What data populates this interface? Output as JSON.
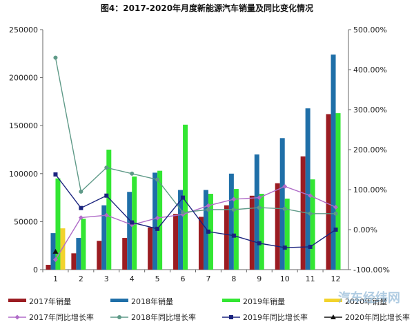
{
  "chart_data": {
    "type": "bar",
    "title": "图4：2017-2020年月度新能源汽车销量及同比变化情况",
    "categories": [
      "1",
      "2",
      "3",
      "4",
      "5",
      "6",
      "7",
      "8",
      "9",
      "10",
      "11",
      "12"
    ],
    "ylim": [
      0,
      250000
    ],
    "y_ticks": [
      "0",
      "50000",
      "100000",
      "150000",
      "200000",
      "250000"
    ],
    "y2lim": [
      -1.0,
      5.0
    ],
    "y2_ticks": [
      "-100.00%",
      "0.00%",
      "100.00%",
      "200.00%",
      "300.00%",
      "400.00%",
      "500.00%"
    ],
    "series": [
      {
        "name": "2017年销量",
        "kind": "bar",
        "color": "#9b1c22",
        "values": [
          5000,
          17000,
          30000,
          33000,
          44000,
          58000,
          55000,
          67000,
          77000,
          90000,
          118000,
          162000
        ]
      },
      {
        "name": "2018年销量",
        "kind": "bar",
        "color": "#1f6fa8",
        "values": [
          38000,
          33000,
          67000,
          81000,
          101000,
          83000,
          83000,
          100000,
          120000,
          137000,
          168000,
          224000
        ]
      },
      {
        "name": "2019年销量",
        "kind": "bar",
        "color": "#33e633",
        "values": [
          95000,
          53000,
          125000,
          97000,
          103000,
          151000,
          79000,
          84000,
          79000,
          74000,
          94000,
          163000
        ]
      },
      {
        "name": "2020年销量",
        "kind": "bar",
        "color": "#f2d32c",
        "values": [
          43000,
          null,
          null,
          null,
          null,
          null,
          null,
          null,
          null,
          null,
          null,
          null
        ]
      },
      {
        "name": "2017年同比增长率",
        "kind": "line",
        "color": "#b06cc8",
        "marker": "diamond",
        "values": [
          -0.75,
          0.3,
          0.36,
          0.12,
          0.29,
          0.38,
          0.6,
          0.76,
          0.8,
          1.08,
          0.85,
          0.56
        ]
      },
      {
        "name": "2018年同比增长率",
        "kind": "line",
        "color": "#5f9a88",
        "marker": "circle",
        "values": [
          4.3,
          0.95,
          1.55,
          1.4,
          1.25,
          0.43,
          0.5,
          0.5,
          0.55,
          0.52,
          0.4,
          0.4
        ]
      },
      {
        "name": "2019年同比增长率",
        "kind": "line",
        "color": "#1a237e",
        "marker": "square",
        "values": [
          1.38,
          0.54,
          0.85,
          0.18,
          0.02,
          0.8,
          -0.05,
          -0.15,
          -0.34,
          -0.45,
          -0.43,
          0.0
        ]
      },
      {
        "name": "2020年同比增长率",
        "kind": "line",
        "color": "#111111",
        "marker": "triangle",
        "values": [
          -0.55,
          null,
          null,
          null,
          null,
          null,
          null,
          null,
          null,
          null,
          null,
          null
        ]
      }
    ]
  },
  "watermark": "汽车经纬网"
}
